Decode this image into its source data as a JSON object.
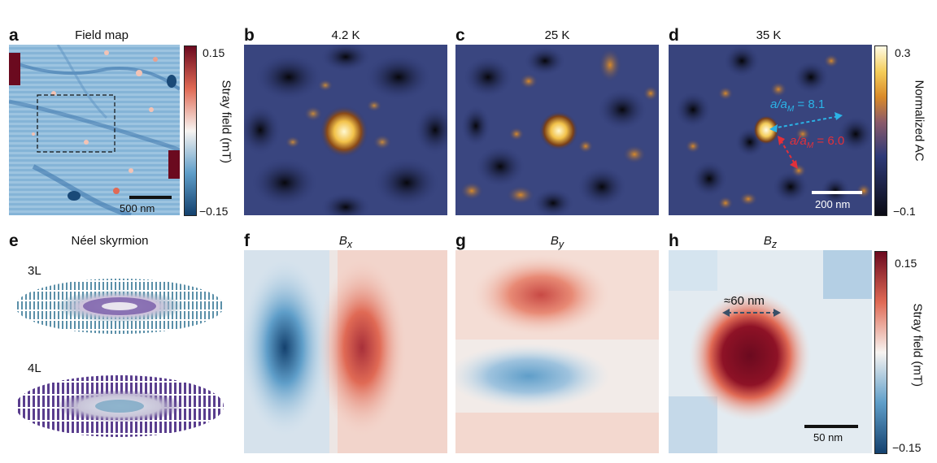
{
  "panels": {
    "a": {
      "label": "a",
      "title": "Field map",
      "scale_bar": "500 nm"
    },
    "b": {
      "label": "b",
      "title": "4.2 K"
    },
    "c": {
      "label": "c",
      "title": "25 K"
    },
    "d": {
      "label": "d",
      "title": "35 K",
      "scale_bar": "200 nm",
      "annotation_ratio1_value": "8.1",
      "annotation_ratio2_value": "6.0",
      "ratio_symbol": "a/a",
      "ratio_sub": "M"
    },
    "e": {
      "label": "e",
      "title": "Néel skyrmion",
      "layer1": "3L",
      "layer2": "4L"
    },
    "f": {
      "label": "f",
      "title_symbol": "B",
      "title_sub": "x"
    },
    "g": {
      "label": "g",
      "title_symbol": "B",
      "title_sub": "y"
    },
    "h": {
      "label": "h",
      "title_symbol": "B",
      "title_sub": "z",
      "size_annotation": "≈60 nm",
      "scale_bar": "50 nm"
    }
  },
  "colorbars": {
    "stray_top": {
      "label": "Stray field (mT)",
      "max": "0.15",
      "min": "−0.15"
    },
    "ac": {
      "label": "Normalized AC",
      "max": "0.3",
      "min": "−0.1"
    },
    "stray_bottom": {
      "label": "Stray field (mT)",
      "max": "0.15",
      "min": "−0.15"
    }
  },
  "colors": {
    "red_deep": "#6b0a1f",
    "red": "#e06a55",
    "white": "#f7f4f1",
    "blue": "#5f9ec9",
    "blue_deep": "#14416e",
    "ac_dark": "#0b0b14",
    "ac_blue": "#2e3a78",
    "ac_orange": "#d98a2a",
    "ac_bright": "#fff8d0",
    "cyan_annotation": "#2bb3e6",
    "red_annotation": "#e0303a",
    "skyrmion_purple": "#5a3e8e",
    "skyrmion_teal": "#5a8fa8"
  }
}
